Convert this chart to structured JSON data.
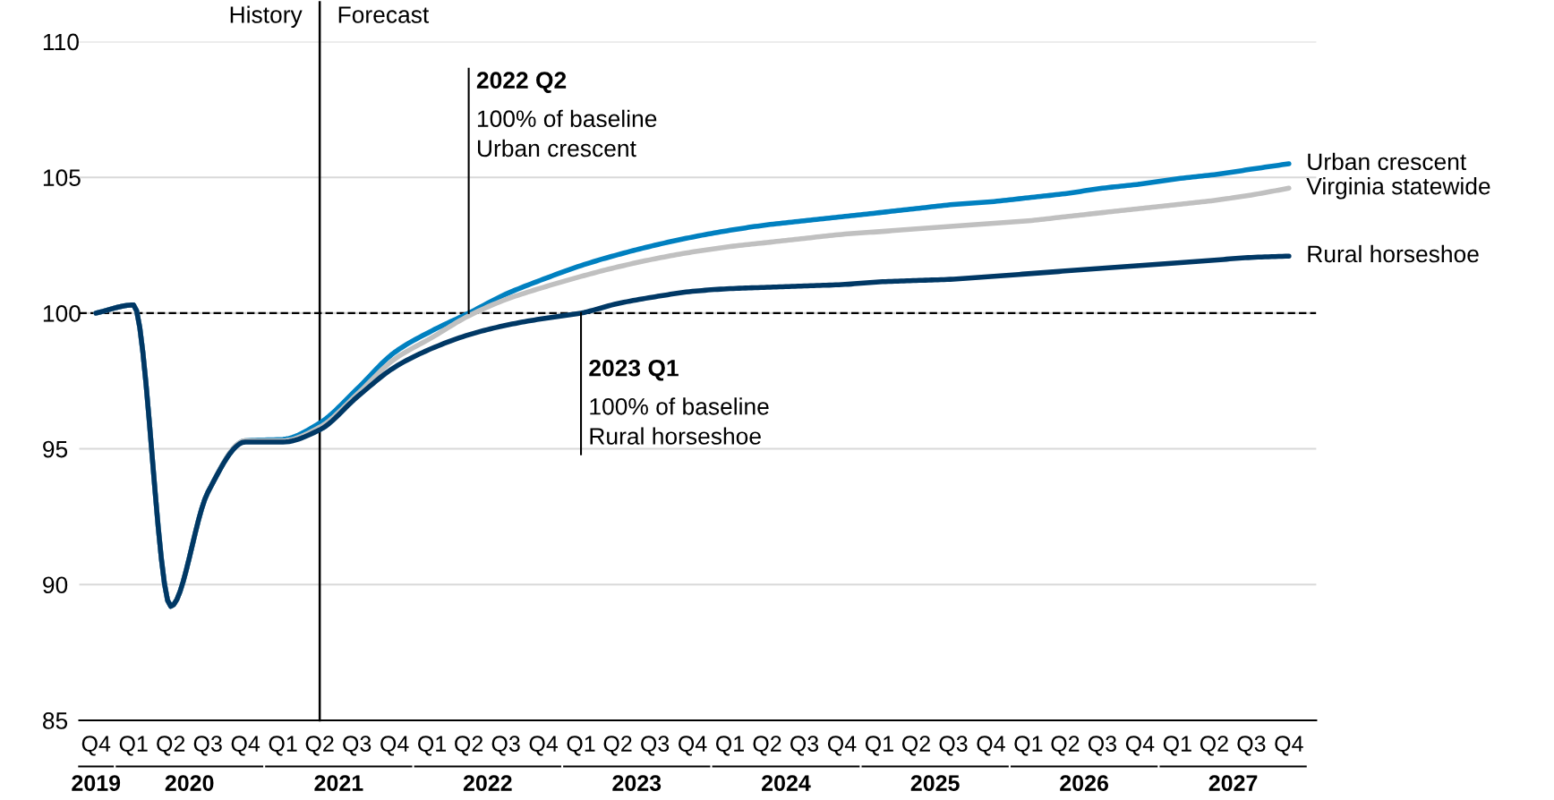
{
  "chart_data": {
    "type": "line",
    "x": [
      "2019-10",
      "2020-01",
      "2020-04",
      "2020-07",
      "2020-10",
      "2021-01",
      "2021-04",
      "2021-07",
      "2021-10",
      "2022-01",
      "2022-04",
      "2022-07",
      "2022-10",
      "2023-01",
      "2023-04",
      "2023-07",
      "2023-10",
      "2024-01",
      "2024-04",
      "2024-07",
      "2024-10",
      "2025-01",
      "2025-04",
      "2025-07",
      "2025-10",
      "2026-01",
      "2026-04",
      "2026-07",
      "2026-10",
      "2027-01",
      "2027-04",
      "2027-07",
      "2027-10"
    ],
    "series": [
      {
        "name": "Urban crescent",
        "color": "#0080c0",
        "values": [
          100,
          100.3,
          89.2,
          93.4,
          95.3,
          95.35,
          95.95,
          97.2,
          98.55,
          99.35,
          100,
          100.7,
          101.25,
          101.75,
          102.15,
          102.5,
          102.8,
          103.05,
          103.25,
          103.4,
          103.55,
          103.7,
          103.85,
          104.0,
          104.1,
          104.25,
          104.4,
          104.6,
          104.75,
          104.95,
          105.1,
          105.3,
          105.5
        ]
      },
      {
        "name": "Virginia statewide",
        "color": "#c0c0c0",
        "values": [
          100,
          100.3,
          89.2,
          93.4,
          95.3,
          95.3,
          95.8,
          97.0,
          98.3,
          99.1,
          99.9,
          100.5,
          100.95,
          101.35,
          101.7,
          102.0,
          102.25,
          102.45,
          102.6,
          102.75,
          102.9,
          103.0,
          103.1,
          103.2,
          103.3,
          103.4,
          103.55,
          103.7,
          103.85,
          104.0,
          104.15,
          104.35,
          104.6
        ]
      },
      {
        "name": "Rural horseshoe",
        "color": "#003865",
        "values": [
          100,
          100.3,
          89.2,
          93.4,
          95.25,
          95.25,
          95.7,
          96.9,
          98.0,
          98.7,
          99.2,
          99.55,
          99.8,
          100,
          100.35,
          100.6,
          100.8,
          100.9,
          100.95,
          101.0,
          101.05,
          101.15,
          101.2,
          101.25,
          101.35,
          101.45,
          101.55,
          101.65,
          101.75,
          101.85,
          101.95,
          102.05,
          102.1
        ]
      }
    ],
    "xlim": [
      "2019-08-21",
      "2027-12-07"
    ],
    "xticks": [
      {
        "value": "2019-10",
        "label": "Q4"
      },
      {
        "value": "2020-01",
        "label": "Q1"
      },
      {
        "value": "2020-04",
        "label": "Q2"
      },
      {
        "value": "2020-07",
        "label": "Q3"
      },
      {
        "value": "2020-10",
        "label": "Q4"
      },
      {
        "value": "2021-01",
        "label": "Q1"
      },
      {
        "value": "2021-04",
        "label": "Q2"
      },
      {
        "value": "2021-07",
        "label": "Q3"
      },
      {
        "value": "2021-10",
        "label": "Q4"
      },
      {
        "value": "2022-01",
        "label": "Q1"
      },
      {
        "value": "2022-04",
        "label": "Q2"
      },
      {
        "value": "2022-07",
        "label": "Q3"
      },
      {
        "value": "2022-10",
        "label": "Q4"
      },
      {
        "value": "2023-01",
        "label": "Q1"
      },
      {
        "value": "2023-04",
        "label": "Q2"
      },
      {
        "value": "2023-07",
        "label": "Q3"
      },
      {
        "value": "2023-10",
        "label": "Q4"
      },
      {
        "value": "2024-01",
        "label": "Q1"
      },
      {
        "value": "2024-04",
        "label": "Q2"
      },
      {
        "value": "2024-07",
        "label": "Q3"
      },
      {
        "value": "2024-10",
        "label": "Q4"
      },
      {
        "value": "2025-01",
        "label": "Q1"
      },
      {
        "value": "2025-04",
        "label": "Q2"
      },
      {
        "value": "2025-07",
        "label": "Q3"
      },
      {
        "value": "2025-10",
        "label": "Q4"
      },
      {
        "value": "2026-01",
        "label": "Q1"
      },
      {
        "value": "2026-04",
        "label": "Q2"
      },
      {
        "value": "2026-07",
        "label": "Q3"
      },
      {
        "value": "2026-10",
        "label": "Q4"
      },
      {
        "value": "2027-01",
        "label": "Q1"
      },
      {
        "value": "2027-04",
        "label": "Q2"
      },
      {
        "value": "2027-07",
        "label": "Q3"
      },
      {
        "value": "2027-10",
        "label": "Q4"
      }
    ],
    "ylim": [
      85,
      110
    ],
    "yticks": [
      85,
      90,
      95,
      100,
      105,
      110
    ],
    "grid": "y",
    "legend": false,
    "marker": "none",
    "line_style": "solid",
    "ref_lines": [
      {
        "axis": "y",
        "value": 100,
        "color": "#000000",
        "line_style": "dashed"
      },
      {
        "axis": "x",
        "value": "2021-04",
        "color": "#000000",
        "line_style": "solid"
      }
    ],
    "annotations": [
      "History",
      "Forecast",
      {
        "text": "2022 Q2\n100% of baseline\nUrban crescent",
        "x": "2022-04",
        "y": 100
      },
      {
        "text": "2023 Q1\n100% of baseline\nRural horseshoe",
        "x": "2023-01",
        "y": 100
      },
      "2019",
      "2020",
      "2021",
      "2022",
      "2023",
      "2024",
      "2025",
      "2026",
      "2027"
    ]
  }
}
